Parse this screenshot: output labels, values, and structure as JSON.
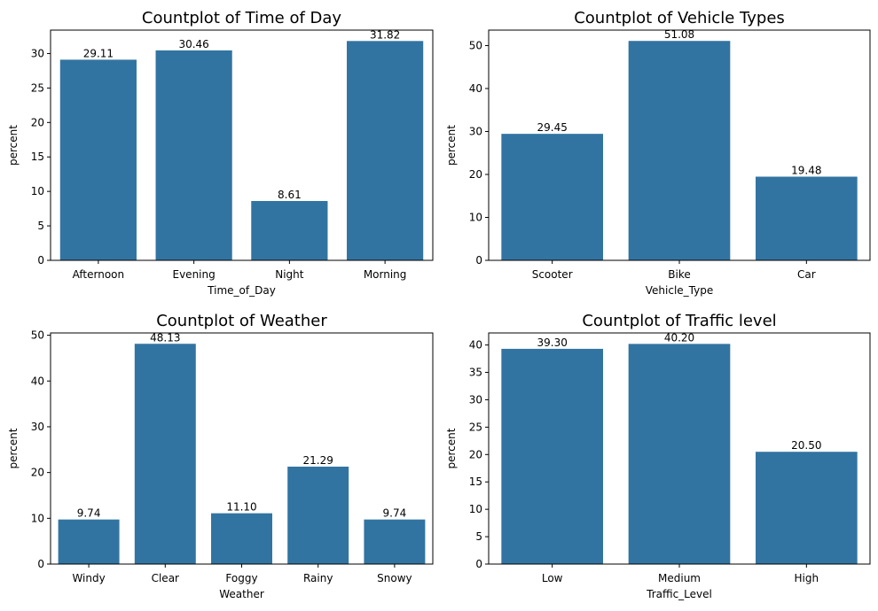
{
  "chart_data": [
    {
      "type": "bar",
      "title": "Countplot of Time of Day",
      "xlabel": "Time_of_Day",
      "ylabel": "percent",
      "categories": [
        "Afternoon",
        "Evening",
        "Night",
        "Morning"
      ],
      "values": [
        29.11,
        30.46,
        8.61,
        31.82
      ],
      "value_labels": [
        "29.11",
        "30.46",
        "8.61",
        "31.82"
      ],
      "yticks": [
        0,
        5,
        10,
        15,
        20,
        25,
        30
      ],
      "ylim": [
        0,
        33.4
      ],
      "color": "#3274a1",
      "grid": false
    },
    {
      "type": "bar",
      "title": "Countplot of Vehicle Types",
      "xlabel": "Vehicle_Type",
      "ylabel": "percent",
      "categories": [
        "Scooter",
        "Bike",
        "Car"
      ],
      "values": [
        29.45,
        51.08,
        19.48
      ],
      "value_labels": [
        "29.45",
        "51.08",
        "19.48"
      ],
      "yticks": [
        0,
        10,
        20,
        30,
        40,
        50
      ],
      "ylim": [
        0,
        53.6
      ],
      "color": "#3274a1",
      "grid": false
    },
    {
      "type": "bar",
      "title": "Countplot of Weather",
      "xlabel": "Weather",
      "ylabel": "percent",
      "categories": [
        "Windy",
        "Clear",
        "Foggy",
        "Rainy",
        "Snowy"
      ],
      "values": [
        9.74,
        48.13,
        11.1,
        21.29,
        9.74
      ],
      "value_labels": [
        "9.74",
        "48.13",
        "11.10",
        "21.29",
        "9.74"
      ],
      "yticks": [
        0,
        10,
        20,
        30,
        40,
        50
      ],
      "ylim": [
        0,
        50.5
      ],
      "color": "#3274a1",
      "grid": false
    },
    {
      "type": "bar",
      "title": "Countplot of Traffic level",
      "xlabel": "Traffic_Level",
      "ylabel": "percent",
      "categories": [
        "Low",
        "Medium",
        "High"
      ],
      "values": [
        39.3,
        40.2,
        20.5
      ],
      "value_labels": [
        "39.30",
        "40.20",
        "20.50"
      ],
      "yticks": [
        0,
        5,
        10,
        15,
        20,
        25,
        30,
        35,
        40
      ],
      "ylim": [
        0,
        42.2
      ],
      "color": "#3274a1",
      "grid": false
    }
  ]
}
